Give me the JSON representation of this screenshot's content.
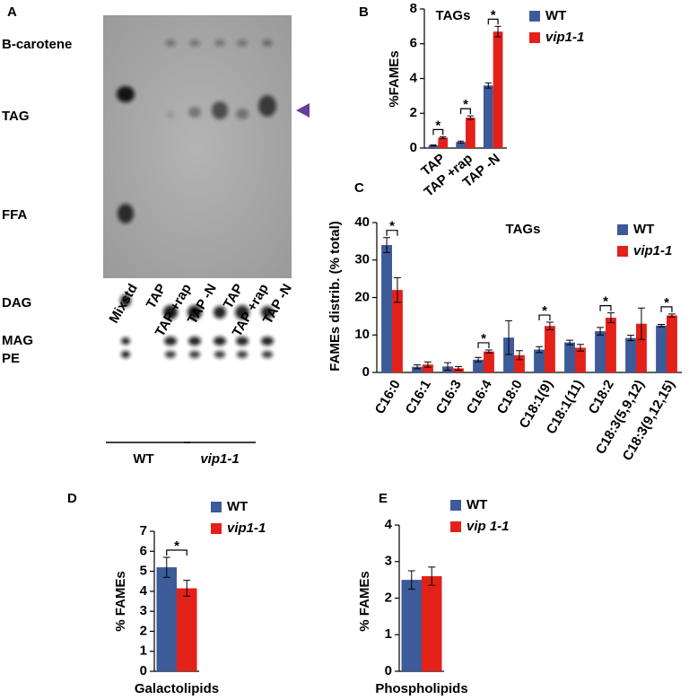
{
  "panel_a": {
    "panel": "A",
    "spot_labels": [
      "B-carotene",
      "TAG",
      "FFA",
      "DAG",
      "MAG",
      "PE"
    ],
    "lanes": [
      "Mixstd",
      "TAP",
      "TAP +rap",
      "TAP -N",
      "TAP",
      "TAP +rap",
      "TAP -N"
    ],
    "groups": [
      "WT",
      "vip1-1"
    ]
  },
  "chart_data": [
    {
      "type": "bar",
      "panel": "B",
      "title": "TAGs",
      "ylabel": "%FAMEs",
      "categories": [
        "TAP",
        "TAP +rap",
        "TAP -N"
      ],
      "series": [
        {
          "name": "WT",
          "color": "#3d5a99",
          "values": [
            0.15,
            0.35,
            3.6
          ],
          "errors": [
            0.03,
            0.05,
            0.15
          ]
        },
        {
          "name": "vip1-1",
          "color": "#e32119",
          "values": [
            0.6,
            1.75,
            6.7
          ],
          "errors": [
            0.05,
            0.1,
            0.3
          ]
        }
      ],
      "stars": [
        "*",
        "*",
        "*"
      ],
      "ylim": [
        0,
        8
      ],
      "yticks": [
        0,
        2,
        4,
        6,
        8
      ],
      "grid": false
    },
    {
      "type": "bar",
      "panel": "C",
      "title": "TAGs",
      "ylabel": "FAMEs distrib. (% total)",
      "categories": [
        "C16:0",
        "C16:1",
        "C16:3",
        "C16:4",
        "C18:0",
        "C18:1(9)",
        "C18:1(11)",
        "C18:2",
        "C18:3(5,9,12)",
        "C18:3(9,12,15)"
      ],
      "series": [
        {
          "name": "WT",
          "color": "#3d5a99",
          "values": [
            34,
            1.5,
            1.6,
            3.4,
            9.3,
            6.1,
            8.0,
            11.0,
            9.2,
            12.5
          ],
          "errors": [
            2.0,
            0.5,
            1.0,
            0.6,
            4.5,
            0.8,
            0.6,
            1.0,
            0.7,
            0.3
          ]
        },
        {
          "name": "vip1-1",
          "color": "#e32119",
          "values": [
            22,
            2.1,
            1.1,
            5.6,
            4.6,
            12.4,
            6.6,
            14.6,
            13.0,
            15.2
          ],
          "errors": [
            3.3,
            0.7,
            0.5,
            0.4,
            1.2,
            1.0,
            0.9,
            1.3,
            4.2,
            0.4
          ]
        }
      ],
      "stars": [
        "*",
        null,
        null,
        "*",
        null,
        "*",
        null,
        "*",
        null,
        "*"
      ],
      "ylim": [
        0,
        40
      ],
      "yticks": [
        0,
        10,
        20,
        30,
        40
      ],
      "grid": false
    },
    {
      "type": "bar",
      "panel": "D",
      "ylabel": "% FAMEs",
      "categories": [
        "Galactolipids"
      ],
      "series": [
        {
          "name": "WT",
          "color": "#3d5a99",
          "values": [
            5.2
          ],
          "errors": [
            0.5
          ]
        },
        {
          "name": "vip1-1",
          "color": "#e32119",
          "values": [
            4.15
          ],
          "errors": [
            0.4
          ]
        }
      ],
      "stars": [
        "*"
      ],
      "ylim": [
        0,
        7
      ],
      "yticks": [
        0,
        1,
        2,
        3,
        4,
        5,
        6,
        7
      ],
      "grid": false
    },
    {
      "type": "bar",
      "panel": "E",
      "ylabel": "% FAMEs",
      "categories": [
        "Phospholipids"
      ],
      "series": [
        {
          "name": "WT",
          "color": "#3d5a99",
          "values": [
            2.5
          ],
          "errors": [
            0.25
          ]
        },
        {
          "name": "vip 1-1",
          "color": "#e32119",
          "values": [
            2.6
          ],
          "errors": [
            0.25
          ]
        }
      ],
      "ylim": [
        0,
        4
      ],
      "yticks": [
        0,
        1,
        2,
        3,
        4
      ],
      "grid": false
    }
  ]
}
